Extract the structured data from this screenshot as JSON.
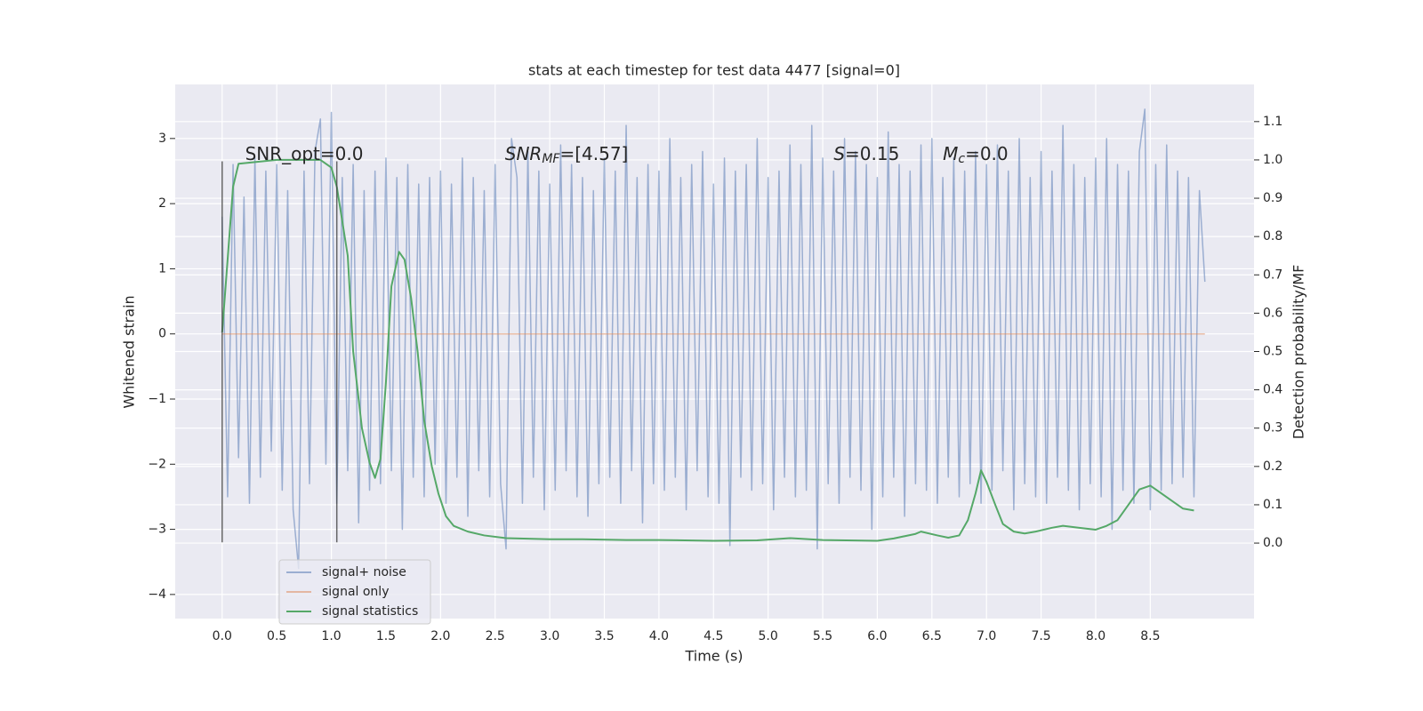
{
  "chart_data": {
    "type": "line",
    "title": "stats at each timestep for test data 4477 [signal=0]",
    "xlabel": "Time (s)",
    "ylabel": "Whitened strain",
    "y2label": "Detection probability/MF",
    "xlim": [
      -0.43,
      9.45
    ],
    "ylim": [
      -4.37,
      3.83
    ],
    "y2lim": [
      -0.197,
      1.197
    ],
    "xticks": [
      {
        "value": 0,
        "label": "0.0"
      },
      {
        "value": 0.5,
        "label": "0.5"
      },
      {
        "value": 1,
        "label": "1.0"
      },
      {
        "value": 1.5,
        "label": "1.5"
      },
      {
        "value": 2,
        "label": "2.0"
      },
      {
        "value": 2.5,
        "label": "2.5"
      },
      {
        "value": 3,
        "label": "3.0"
      },
      {
        "value": 3.5,
        "label": "3.5"
      },
      {
        "value": 4,
        "label": "4.0"
      },
      {
        "value": 4.5,
        "label": "4.5"
      },
      {
        "value": 5,
        "label": "5.0"
      },
      {
        "value": 5.5,
        "label": "5.5"
      },
      {
        "value": 6,
        "label": "6.0"
      },
      {
        "value": 6.5,
        "label": "6.5"
      },
      {
        "value": 7,
        "label": "7.0"
      },
      {
        "value": 7.5,
        "label": "7.5"
      },
      {
        "value": 8,
        "label": "8.0"
      },
      {
        "value": 8.5,
        "label": "8.5"
      }
    ],
    "yticks": [
      {
        "value": -4,
        "label": "−4"
      },
      {
        "value": -3,
        "label": "−3"
      },
      {
        "value": -2,
        "label": "−2"
      },
      {
        "value": -1,
        "label": "−1"
      },
      0,
      1,
      2,
      3
    ],
    "y2ticks": [
      {
        "value": 0,
        "label": "0.0"
      },
      0.1,
      0.2,
      0.3,
      0.4,
      0.5,
      0.6,
      0.7,
      0.8,
      0.9,
      {
        "value": 1,
        "label": "1.0"
      },
      1.1
    ],
    "grid": true,
    "legend": "lower left",
    "series": [
      {
        "name": "signal+ noise",
        "color": "#4c72b0",
        "x": [
          0,
          0.05,
          0.1,
          0.15,
          0.2,
          0.25,
          0.3,
          0.35,
          0.4,
          0.45,
          0.5,
          0.55,
          0.6,
          0.65,
          0.7,
          0.75,
          0.8,
          0.85,
          0.9,
          0.95,
          1,
          1.05,
          1.1,
          1.15,
          1.2,
          1.25,
          1.3,
          1.35,
          1.4,
          1.45,
          1.5,
          1.55,
          1.6,
          1.65,
          1.7,
          1.75,
          1.8,
          1.85,
          1.9,
          1.95,
          2,
          2.05,
          2.1,
          2.15,
          2.2,
          2.25,
          2.3,
          2.35,
          2.4,
          2.45,
          2.5,
          2.55,
          2.6,
          2.65,
          2.7,
          2.75,
          2.8,
          2.85,
          2.9,
          2.95,
          3,
          3.05,
          3.1,
          3.15,
          3.2,
          3.25,
          3.3,
          3.35,
          3.4,
          3.45,
          3.5,
          3.55,
          3.6,
          3.65,
          3.7,
          3.75,
          3.8,
          3.85,
          3.9,
          3.95,
          4,
          4.05,
          4.1,
          4.15,
          4.2,
          4.25,
          4.3,
          4.35,
          4.4,
          4.45,
          4.5,
          4.55,
          4.6,
          4.65,
          4.7,
          4.75,
          4.8,
          4.85,
          4.9,
          4.95,
          5,
          5.05,
          5.1,
          5.15,
          5.2,
          5.25,
          5.3,
          5.35,
          5.4,
          5.45,
          5.5,
          5.55,
          5.6,
          5.65,
          5.7,
          5.75,
          5.8,
          5.85,
          5.9,
          5.95,
          6,
          6.05,
          6.1,
          6.15,
          6.2,
          6.25,
          6.3,
          6.35,
          6.4,
          6.45,
          6.5,
          6.55,
          6.6,
          6.65,
          6.7,
          6.75,
          6.8,
          6.85,
          6.9,
          6.95,
          7,
          7.05,
          7.1,
          7.15,
          7.2,
          7.25,
          7.3,
          7.35,
          7.4,
          7.45,
          7.5,
          7.55,
          7.6,
          7.65,
          7.7,
          7.75,
          7.8,
          7.85,
          7.9,
          7.95,
          8,
          8.05,
          8.1,
          8.15,
          8.2,
          8.25,
          8.3,
          8.35,
          8.4,
          8.45,
          8.5,
          8.55,
          8.6,
          8.65,
          8.7,
          8.75,
          8.8,
          8.85,
          8.9,
          8.95,
          9
        ],
        "values": [
          1.8,
          -2.5,
          2.6,
          -1.9,
          2.1,
          -2.6,
          2.7,
          -2.2,
          2.5,
          -1.8,
          2.6,
          -2.4,
          2.2,
          -2.7,
          -3.6,
          2.5,
          -2.3,
          2.8,
          3.3,
          -2.0,
          3.4,
          -2.6,
          2.4,
          -2.1,
          2.6,
          -2.9,
          2.2,
          -2.4,
          2.5,
          -2.3,
          2.7,
          -2.1,
          2.4,
          -3.0,
          2.6,
          -2.2,
          2.3,
          -2.5,
          2.4,
          -2.0,
          2.5,
          -2.6,
          2.3,
          -2.2,
          2.7,
          -2.8,
          2.4,
          -2.1,
          2.2,
          -2.5,
          2.6,
          -2.3,
          -3.3,
          3.0,
          2.4,
          -2.6,
          2.8,
          -2.2,
          2.5,
          -2.7,
          2.3,
          -2.4,
          2.9,
          -2.1,
          2.6,
          -2.5,
          2.4,
          -2.8,
          2.2,
          -2.3,
          2.7,
          -2.2,
          2.5,
          -2.6,
          3.2,
          -2.1,
          2.4,
          -2.9,
          2.6,
          -2.3,
          2.5,
          -2.4,
          3.0,
          -2.2,
          2.4,
          -2.7,
          2.6,
          -2.1,
          2.8,
          -2.5,
          2.3,
          -2.6,
          2.7,
          -3.25,
          2.5,
          -2.2,
          2.6,
          -2.4,
          3.0,
          -2.3,
          2.4,
          -2.7,
          2.5,
          -2.2,
          2.9,
          -2.5,
          2.6,
          -2.4,
          3.2,
          -3.3,
          2.7,
          -2.3,
          2.5,
          -2.6,
          3.0,
          -2.2,
          2.8,
          -2.4,
          2.6,
          -3.0,
          2.4,
          -2.5,
          3.1,
          -2.2,
          2.6,
          -2.8,
          2.5,
          -2.3,
          2.9,
          -2.4,
          3.0,
          -2.6,
          2.4,
          -2.2,
          2.7,
          -2.5,
          2.5,
          -2.3,
          2.8,
          -2.6,
          2.6,
          -2.4,
          2.9,
          -2.1,
          2.5,
          -2.7,
          3.0,
          -2.3,
          2.4,
          -2.5,
          2.8,
          -2.6,
          2.5,
          -2.2,
          3.2,
          -2.4,
          2.6,
          -2.7,
          2.4,
          -2.3,
          2.7,
          -2.5,
          3.0,
          -3.0,
          2.6,
          -2.4,
          2.5,
          -2.6,
          2.8,
          3.45,
          -2.7,
          2.6,
          -2.4,
          2.9,
          -2.3,
          2.5,
          -2.2,
          2.4,
          -2.5,
          2.2,
          0.8
        ]
      },
      {
        "name": "signal only",
        "color": "#dd8452",
        "x": [
          0,
          9
        ],
        "values": [
          0,
          0
        ]
      },
      {
        "name": "signal statistics",
        "color": "#55a868",
        "axis": "y2",
        "x": [
          0,
          0.1,
          0.15,
          0.5,
          0.9,
          1.0,
          1.05,
          1.15,
          1.2,
          1.28,
          1.35,
          1.4,
          1.45,
          1.5,
          1.55,
          1.62,
          1.67,
          1.73,
          1.79,
          1.85,
          1.92,
          1.98,
          2.05,
          2.12,
          2.25,
          2.4,
          2.6,
          3.0,
          3.3,
          3.7,
          4.0,
          4.5,
          4.9,
          5.2,
          5.5,
          6.0,
          6.15,
          6.35,
          6.4,
          6.55,
          6.65,
          6.75,
          6.83,
          6.9,
          6.95,
          7.0,
          7.08,
          7.15,
          7.25,
          7.35,
          7.45,
          7.6,
          7.7,
          7.85,
          8.0,
          8.1,
          8.2,
          8.3,
          8.4,
          8.5,
          8.55,
          8.7,
          8.8,
          8.9
        ],
        "values": [
          0.55,
          0.93,
          0.99,
          1.0,
          1.0,
          0.98,
          0.93,
          0.75,
          0.5,
          0.3,
          0.21,
          0.17,
          0.22,
          0.42,
          0.67,
          0.76,
          0.74,
          0.64,
          0.5,
          0.32,
          0.2,
          0.13,
          0.07,
          0.045,
          0.03,
          0.02,
          0.013,
          0.01,
          0.01,
          0.008,
          0.008,
          0.006,
          0.007,
          0.013,
          0.008,
          0.006,
          0.012,
          0.024,
          0.03,
          0.02,
          0.014,
          0.02,
          0.06,
          0.13,
          0.19,
          0.16,
          0.1,
          0.05,
          0.03,
          0.025,
          0.03,
          0.04,
          0.045,
          0.04,
          0.035,
          0.045,
          0.06,
          0.1,
          0.14,
          0.15,
          0.14,
          0.11,
          0.09,
          0.085
        ]
      }
    ],
    "vlines": {
      "x": [
        0,
        1.05
      ],
      "ymin": -3.2,
      "ymax": 2.65
    },
    "annotations": [
      [
        {
          "text": "SNR_opt=0.0"
        }
      ],
      [
        {
          "text": "SNR",
          "style": "italic"
        },
        {
          "text": "MF",
          "style": "italic-sub"
        },
        {
          "text": "=[4.57]"
        }
      ],
      [
        {
          "text": "S",
          "style": "italic"
        },
        {
          "text": "=0.15"
        }
      ],
      [
        {
          "text": "M",
          "style": "italic"
        },
        {
          "text": "c",
          "style": "italic-sub"
        },
        {
          "text": "=0.0"
        }
      ]
    ]
  }
}
